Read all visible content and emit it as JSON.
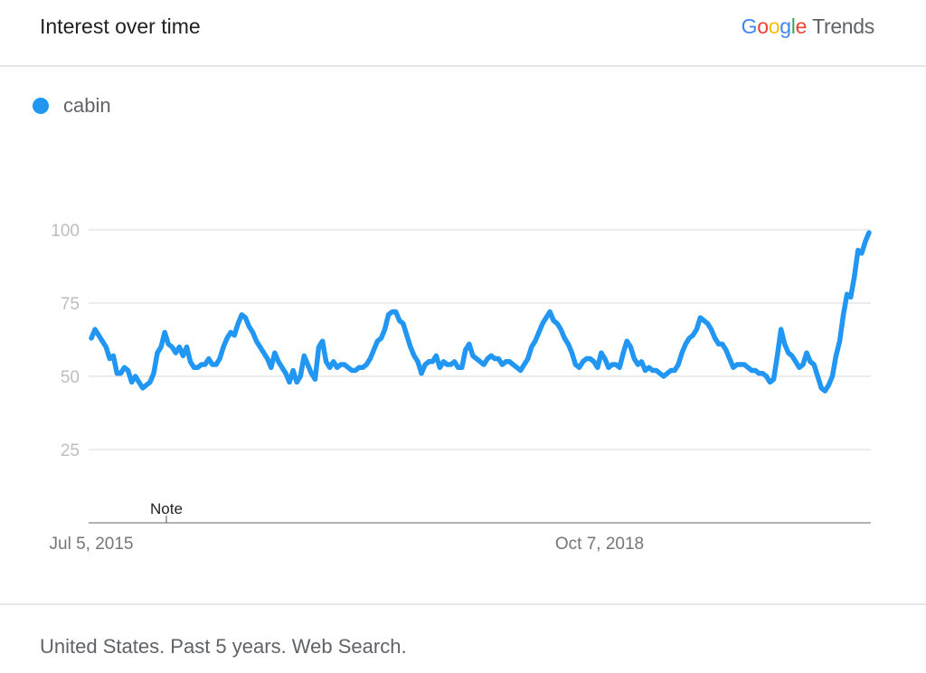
{
  "header": {
    "title": "Interest over time"
  },
  "brand": {
    "google_letters": [
      "G",
      "o",
      "o",
      "g",
      "l",
      "e"
    ],
    "trends": "Trends"
  },
  "colors": {
    "series": "#2196F3",
    "grid": "#e0e0e0",
    "axis": "#999999",
    "tick_text": "#bdbdbd",
    "date_text": "#757575"
  },
  "note": "Note",
  "footer": {
    "text": "United States. Past 5 years. Web Search."
  },
  "chart_data": {
    "type": "line",
    "title": "Interest over time",
    "series": [
      {
        "name": "cabin",
        "values": [
          63,
          66,
          64,
          62,
          60,
          56,
          57,
          51,
          51,
          53,
          52,
          48,
          50,
          48,
          46,
          47,
          48,
          51,
          58,
          60,
          65,
          61,
          60,
          58,
          60,
          57,
          60,
          55,
          53,
          53,
          54,
          54,
          56,
          54,
          54,
          56,
          60,
          63,
          65,
          64,
          68,
          71,
          70,
          67,
          65,
          62,
          60,
          58,
          56,
          53,
          58,
          55,
          53,
          51,
          48,
          52,
          48,
          50,
          57,
          54,
          51,
          49,
          60,
          62,
          55,
          53,
          55,
          53,
          54,
          54,
          53,
          52,
          52,
          53,
          53,
          54,
          56,
          59,
          62,
          63,
          66,
          71,
          72,
          72,
          69,
          68,
          64,
          60,
          57,
          55,
          51,
          54,
          55,
          55,
          57,
          53,
          55,
          54,
          54,
          55,
          53,
          53,
          59,
          61,
          57,
          56,
          55,
          54,
          56,
          57,
          56,
          56,
          54,
          55,
          55,
          54,
          53,
          52,
          54,
          56,
          60,
          62,
          65,
          68,
          70,
          72,
          69,
          68,
          66,
          63,
          61,
          58,
          54,
          53,
          55,
          56,
          56,
          55,
          53,
          58,
          56,
          53,
          54,
          54,
          53,
          58,
          62,
          60,
          56,
          54,
          55,
          52,
          53,
          52,
          52,
          51,
          50,
          51,
          52,
          52,
          54,
          58,
          61,
          63,
          64,
          66,
          70,
          69,
          68,
          66,
          63,
          61,
          61,
          59,
          56,
          53,
          54,
          54,
          54,
          53,
          52,
          52,
          51,
          51,
          50,
          48,
          49,
          57,
          66,
          61,
          58,
          57,
          55,
          53,
          54,
          58,
          55,
          54,
          50,
          46,
          45,
          47,
          50,
          57,
          62,
          71,
          78,
          77,
          84,
          93,
          92,
          96,
          99
        ]
      }
    ],
    "ylim": [
      0,
      100
    ],
    "yticks": [
      25,
      50,
      75,
      100
    ],
    "xticks": [
      "Jul 5, 2015",
      "Oct 7, 2018"
    ],
    "grid": true,
    "legend_position": "top-left"
  }
}
